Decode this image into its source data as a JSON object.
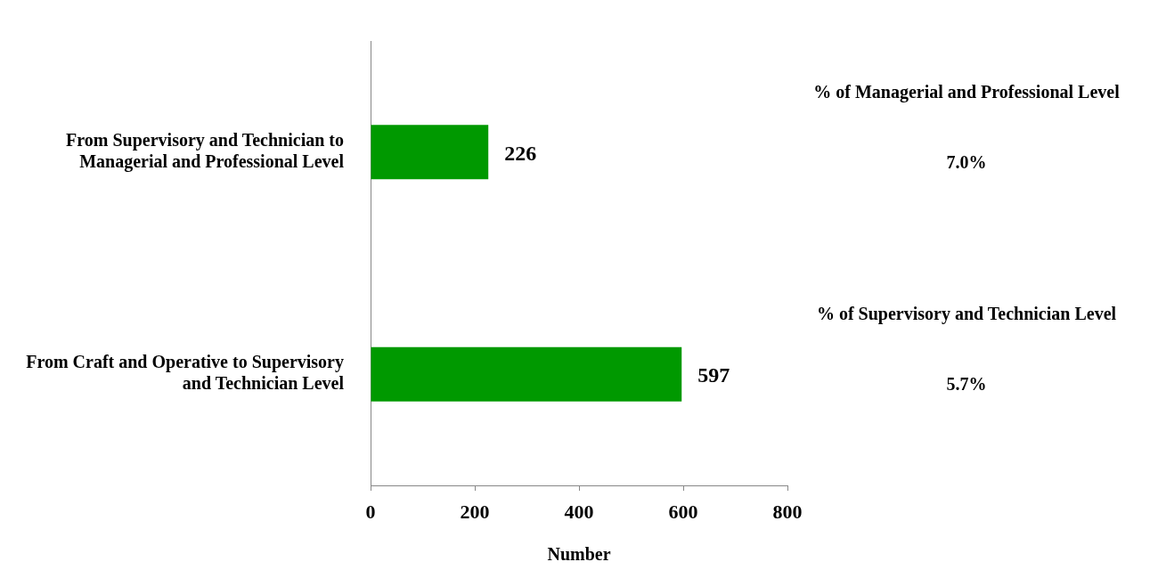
{
  "chart_data": {
    "type": "bar",
    "orientation": "horizontal",
    "xlabel": "Number",
    "categories": [
      "From Supervisory and Technician to Managerial and Professional Level",
      "From Craft and Operative to Supervisory and Technician Level"
    ],
    "values": [
      226,
      597
    ],
    "color": "#009900",
    "data_labels": true,
    "xlim": [
      0,
      800
    ],
    "xticks": [
      0,
      200,
      400,
      600,
      800
    ],
    "annotations": [
      "% of Managerial and Professional Level",
      "7.0%",
      "% of Supervisory and Technician Level",
      "5.7%"
    ]
  }
}
